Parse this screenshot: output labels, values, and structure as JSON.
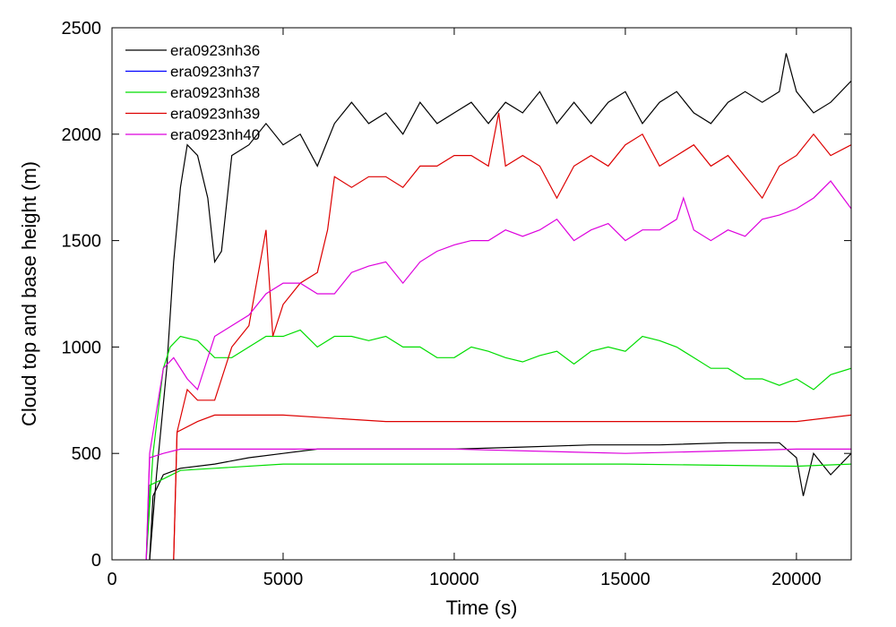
{
  "chart_data": {
    "type": "line",
    "xlabel": "Time (s)",
    "ylabel": "Cloud top and base height (m)",
    "xlim": [
      0,
      21600
    ],
    "ylim": [
      0,
      2500
    ],
    "x_ticks": [
      "0",
      "5000",
      "10000",
      "15000",
      "20000"
    ],
    "x_tick_values": [
      0,
      5000,
      10000,
      15000,
      20000
    ],
    "y_ticks": [
      "0",
      "500",
      "1000",
      "1500",
      "2000",
      "2500"
    ],
    "y_tick_values": [
      0,
      500,
      1000,
      1500,
      2000,
      2500
    ],
    "grid": false,
    "legend_position": "top-left",
    "series": [
      {
        "name": "era0923nh36",
        "color": "#000000",
        "top": [
          [
            1100,
            0
          ],
          [
            1300,
            400
          ],
          [
            1600,
            900
          ],
          [
            1800,
            1400
          ],
          [
            2000,
            1750
          ],
          [
            2200,
            1950
          ],
          [
            2500,
            1900
          ],
          [
            2800,
            1700
          ],
          [
            3000,
            1400
          ],
          [
            3200,
            1450
          ],
          [
            3500,
            1900
          ],
          [
            4000,
            1950
          ],
          [
            4500,
            2050
          ],
          [
            5000,
            1950
          ],
          [
            5500,
            2000
          ],
          [
            6000,
            1850
          ],
          [
            6500,
            2050
          ],
          [
            7000,
            2150
          ],
          [
            7500,
            2050
          ],
          [
            8000,
            2100
          ],
          [
            8500,
            2000
          ],
          [
            9000,
            2150
          ],
          [
            9500,
            2050
          ],
          [
            10000,
            2100
          ],
          [
            10500,
            2150
          ],
          [
            11000,
            2050
          ],
          [
            11500,
            2150
          ],
          [
            12000,
            2100
          ],
          [
            12500,
            2200
          ],
          [
            13000,
            2050
          ],
          [
            13500,
            2150
          ],
          [
            14000,
            2050
          ],
          [
            14500,
            2150
          ],
          [
            15000,
            2200
          ],
          [
            15500,
            2050
          ],
          [
            16000,
            2150
          ],
          [
            16500,
            2200
          ],
          [
            17000,
            2100
          ],
          [
            17500,
            2050
          ],
          [
            18000,
            2150
          ],
          [
            18500,
            2200
          ],
          [
            19000,
            2150
          ],
          [
            19500,
            2200
          ],
          [
            19700,
            2380
          ],
          [
            20000,
            2200
          ],
          [
            20500,
            2100
          ],
          [
            21000,
            2150
          ],
          [
            21600,
            2250
          ]
        ],
        "base": [
          [
            1100,
            0
          ],
          [
            1200,
            300
          ],
          [
            1500,
            400
          ],
          [
            2000,
            430
          ],
          [
            3000,
            450
          ],
          [
            4000,
            480
          ],
          [
            5000,
            500
          ],
          [
            6000,
            520
          ],
          [
            8000,
            520
          ],
          [
            10000,
            520
          ],
          [
            12000,
            530
          ],
          [
            14000,
            540
          ],
          [
            16000,
            540
          ],
          [
            18000,
            550
          ],
          [
            19500,
            550
          ],
          [
            20000,
            480
          ],
          [
            20200,
            300
          ],
          [
            20500,
            500
          ],
          [
            21000,
            400
          ],
          [
            21600,
            500
          ]
        ]
      },
      {
        "name": "era0923nh37",
        "color": "#0000ff",
        "top": [],
        "base": []
      },
      {
        "name": "era0923nh38",
        "color": "#00dd00",
        "top": [
          [
            1000,
            0
          ],
          [
            1200,
            500
          ],
          [
            1500,
            900
          ],
          [
            1700,
            1000
          ],
          [
            2000,
            1050
          ],
          [
            2500,
            1030
          ],
          [
            3000,
            950
          ],
          [
            3500,
            950
          ],
          [
            4000,
            1000
          ],
          [
            4500,
            1050
          ],
          [
            5000,
            1050
          ],
          [
            5500,
            1080
          ],
          [
            6000,
            1000
          ],
          [
            6500,
            1050
          ],
          [
            7000,
            1050
          ],
          [
            7500,
            1030
          ],
          [
            8000,
            1050
          ],
          [
            8500,
            1000
          ],
          [
            9000,
            1000
          ],
          [
            9500,
            950
          ],
          [
            10000,
            950
          ],
          [
            10500,
            1000
          ],
          [
            11000,
            980
          ],
          [
            11500,
            950
          ],
          [
            12000,
            930
          ],
          [
            12500,
            960
          ],
          [
            13000,
            980
          ],
          [
            13500,
            920
          ],
          [
            14000,
            980
          ],
          [
            14500,
            1000
          ],
          [
            15000,
            980
          ],
          [
            15500,
            1050
          ],
          [
            16000,
            1030
          ],
          [
            16500,
            1000
          ],
          [
            17000,
            950
          ],
          [
            17500,
            900
          ],
          [
            18000,
            900
          ],
          [
            18500,
            850
          ],
          [
            19000,
            850
          ],
          [
            19500,
            820
          ],
          [
            20000,
            850
          ],
          [
            20500,
            800
          ],
          [
            21000,
            870
          ],
          [
            21600,
            900
          ]
        ],
        "base": [
          [
            1000,
            0
          ],
          [
            1100,
            350
          ],
          [
            1500,
            380
          ],
          [
            2000,
            420
          ],
          [
            3000,
            430
          ],
          [
            5000,
            450
          ],
          [
            8000,
            450
          ],
          [
            10000,
            450
          ],
          [
            15000,
            450
          ],
          [
            20000,
            440
          ],
          [
            21600,
            450
          ]
        ]
      },
      {
        "name": "era0923nh39",
        "color": "#dd0000",
        "top": [
          [
            1800,
            0
          ],
          [
            1900,
            600
          ],
          [
            2200,
            800
          ],
          [
            2500,
            750
          ],
          [
            3000,
            750
          ],
          [
            3500,
            1000
          ],
          [
            4000,
            1100
          ],
          [
            4500,
            1550
          ],
          [
            4700,
            1050
          ],
          [
            5000,
            1200
          ],
          [
            5500,
            1300
          ],
          [
            6000,
            1350
          ],
          [
            6300,
            1550
          ],
          [
            6500,
            1800
          ],
          [
            7000,
            1750
          ],
          [
            7500,
            1800
          ],
          [
            8000,
            1800
          ],
          [
            8500,
            1750
          ],
          [
            9000,
            1850
          ],
          [
            9500,
            1850
          ],
          [
            10000,
            1900
          ],
          [
            10500,
            1900
          ],
          [
            11000,
            1850
          ],
          [
            11300,
            2100
          ],
          [
            11500,
            1850
          ],
          [
            12000,
            1900
          ],
          [
            12500,
            1850
          ],
          [
            13000,
            1700
          ],
          [
            13500,
            1850
          ],
          [
            14000,
            1900
          ],
          [
            14500,
            1850
          ],
          [
            15000,
            1950
          ],
          [
            15500,
            2000
          ],
          [
            16000,
            1850
          ],
          [
            16500,
            1900
          ],
          [
            17000,
            1950
          ],
          [
            17500,
            1850
          ],
          [
            18000,
            1900
          ],
          [
            18500,
            1800
          ],
          [
            19000,
            1700
          ],
          [
            19500,
            1850
          ],
          [
            20000,
            1900
          ],
          [
            20500,
            2000
          ],
          [
            21000,
            1900
          ],
          [
            21600,
            1950
          ]
        ],
        "base": [
          [
            1800,
            0
          ],
          [
            1900,
            600
          ],
          [
            2500,
            650
          ],
          [
            3000,
            680
          ],
          [
            5000,
            680
          ],
          [
            8000,
            650
          ],
          [
            10000,
            650
          ],
          [
            15000,
            650
          ],
          [
            20000,
            650
          ],
          [
            21600,
            680
          ]
        ]
      },
      {
        "name": "era0923nh40",
        "color": "#dd00dd",
        "top": [
          [
            1000,
            0
          ],
          [
            1100,
            500
          ],
          [
            1500,
            900
          ],
          [
            1800,
            950
          ],
          [
            2200,
            850
          ],
          [
            2500,
            800
          ],
          [
            3000,
            1050
          ],
          [
            3500,
            1100
          ],
          [
            4000,
            1150
          ],
          [
            4500,
            1250
          ],
          [
            5000,
            1300
          ],
          [
            5500,
            1300
          ],
          [
            6000,
            1250
          ],
          [
            6500,
            1250
          ],
          [
            7000,
            1350
          ],
          [
            7500,
            1380
          ],
          [
            8000,
            1400
          ],
          [
            8500,
            1300
          ],
          [
            9000,
            1400
          ],
          [
            9500,
            1450
          ],
          [
            10000,
            1480
          ],
          [
            10500,
            1500
          ],
          [
            11000,
            1500
          ],
          [
            11500,
            1550
          ],
          [
            12000,
            1520
          ],
          [
            12500,
            1550
          ],
          [
            13000,
            1600
          ],
          [
            13500,
            1500
          ],
          [
            14000,
            1550
          ],
          [
            14500,
            1580
          ],
          [
            15000,
            1500
          ],
          [
            15500,
            1550
          ],
          [
            16000,
            1550
          ],
          [
            16500,
            1600
          ],
          [
            16700,
            1700
          ],
          [
            17000,
            1550
          ],
          [
            17500,
            1500
          ],
          [
            18000,
            1550
          ],
          [
            18500,
            1520
          ],
          [
            19000,
            1600
          ],
          [
            19500,
            1620
          ],
          [
            20000,
            1650
          ],
          [
            20500,
            1700
          ],
          [
            21000,
            1780
          ],
          [
            21600,
            1650
          ]
        ],
        "base": [
          [
            1000,
            0
          ],
          [
            1100,
            480
          ],
          [
            1500,
            500
          ],
          [
            2000,
            520
          ],
          [
            5000,
            520
          ],
          [
            10000,
            520
          ],
          [
            15000,
            500
          ],
          [
            20000,
            520
          ],
          [
            21600,
            520
          ]
        ]
      }
    ]
  }
}
